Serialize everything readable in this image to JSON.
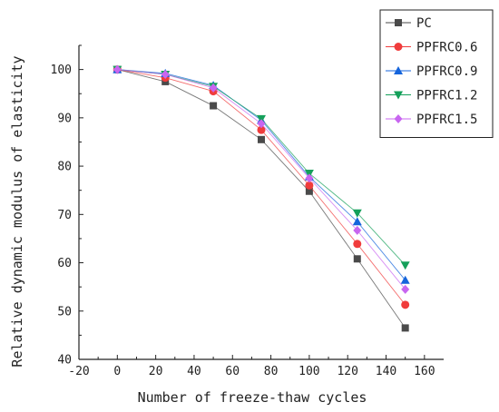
{
  "chart_data": {
    "type": "line",
    "title": "",
    "xlabel": "Number of freeze-thaw cycles",
    "ylabel": "Relative dynamic modulus of elasticity",
    "xlim": [
      -20,
      170
    ],
    "ylim": [
      40,
      105
    ],
    "xticks": [
      -20,
      0,
      20,
      40,
      60,
      80,
      100,
      120,
      140,
      160
    ],
    "yticks": [
      40,
      50,
      60,
      70,
      80,
      90,
      100
    ],
    "x": [
      0,
      25,
      50,
      75,
      100,
      125,
      150
    ],
    "grid": false,
    "legend_position": "top-right",
    "series": [
      {
        "name": "PC",
        "color": "#4a4a4a",
        "marker": "square",
        "values": [
          100,
          97.5,
          92.5,
          85.5,
          74.8,
          60.8,
          46.5
        ]
      },
      {
        "name": "PPFRC0.6",
        "color": "#f03c3c",
        "marker": "circle",
        "values": [
          100,
          98.3,
          95.5,
          87.5,
          76.0,
          63.9,
          51.3
        ]
      },
      {
        "name": "PPFRC0.9",
        "color": "#1464dc",
        "marker": "triangle-up",
        "values": [
          100,
          99.2,
          96.7,
          89.5,
          77.8,
          68.5,
          56.4
        ]
      },
      {
        "name": "PPFRC1.2",
        "color": "#14a05a",
        "marker": "triangle-down",
        "values": [
          100,
          99.0,
          96.5,
          89.8,
          78.5,
          70.3,
          59.5
        ]
      },
      {
        "name": "PPFRC1.5",
        "color": "#c866f0",
        "marker": "diamond",
        "values": [
          100,
          99.0,
          96.2,
          88.8,
          77.5,
          66.7,
          54.5
        ]
      }
    ]
  }
}
